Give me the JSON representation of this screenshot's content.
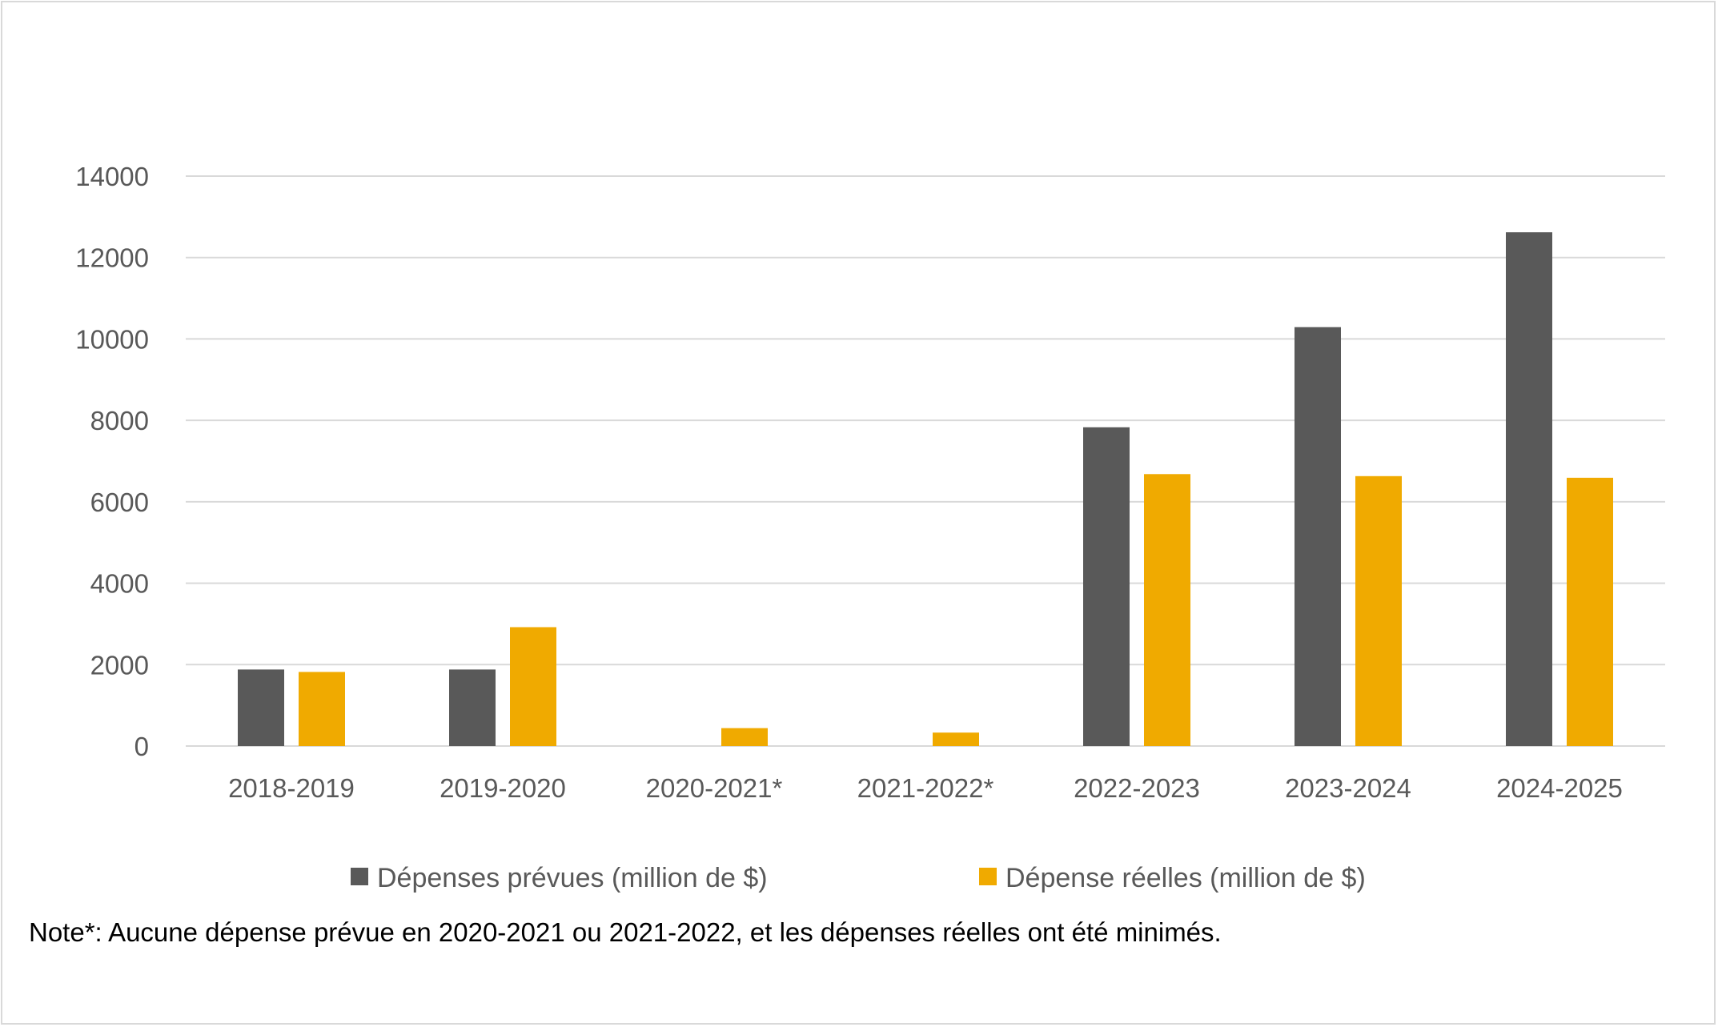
{
  "chart_data": {
    "type": "bar",
    "categories": [
      "2018-2019",
      "2019-2020",
      "2020-2021*",
      "2021-2022*",
      "2022-2023",
      "2023-2024",
      "2024-2025"
    ],
    "series": [
      {
        "name": "Dépenses prévues (million de $)",
        "color": "#595959",
        "values": [
          1880,
          1880,
          null,
          null,
          7830,
          10290,
          12620
        ]
      },
      {
        "name": "Dépense réelles (million de $)",
        "color": "#f0aa00",
        "values": [
          1820,
          2920,
          440,
          330,
          6680,
          6630,
          6590
        ]
      }
    ],
    "ylim": [
      0,
      14000
    ],
    "yticks": [
      0,
      2000,
      4000,
      6000,
      8000,
      10000,
      12000,
      14000
    ],
    "grid": true,
    "legend_position": "bottom"
  },
  "note": "Note*: Aucune dépense prévue en 2020-2021 ou 2021-2022, et les dépenses réelles ont été minimés."
}
